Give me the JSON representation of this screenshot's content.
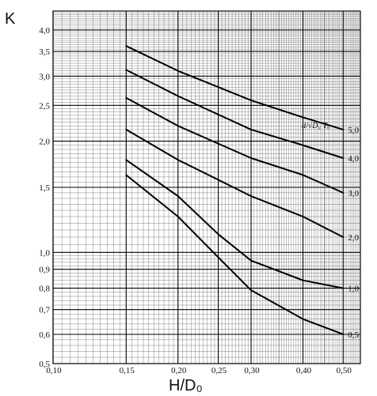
{
  "chart_data": {
    "type": "line",
    "title": "",
    "xlabel": "H/D₀",
    "ylabel": "K",
    "x_scale": "log",
    "y_scale": "log",
    "xlim": [
      0.1,
      0.55
    ],
    "ylim": [
      0.5,
      4.5
    ],
    "grid": true,
    "xticks": [
      0.1,
      0.15,
      0.2,
      0.25,
      0.3,
      0.4,
      0.5
    ],
    "xtick_labels": [
      "0,10",
      "0,15",
      "0,20",
      "0,25",
      "0,30",
      "0,40",
      "0,50"
    ],
    "yticks": [
      0.5,
      0.6,
      0.7,
      0.8,
      0.9,
      1.0,
      1.5,
      2.0,
      2.5,
      3.0,
      3.5,
      4.0
    ],
    "ytick_labels": [
      "0,5",
      "0,6",
      "0,7",
      "0,8",
      "0,9",
      "1,0",
      "1,5",
      "2,0",
      "2,5",
      "3,0",
      "3,5",
      "4,0"
    ],
    "legend_title": "d/√D₀ Tₒ",
    "legend_placement": "curve-ends-right",
    "series": [
      {
        "name": "5,0",
        "x": [
          0.15,
          0.2,
          0.3,
          0.4,
          0.5
        ],
        "y": [
          3.62,
          3.1,
          2.58,
          2.32,
          2.15
        ]
      },
      {
        "name": "4,0",
        "x": [
          0.15,
          0.2,
          0.3,
          0.4,
          0.5
        ],
        "y": [
          3.12,
          2.65,
          2.15,
          1.95,
          1.8
        ]
      },
      {
        "name": "3,0",
        "x": [
          0.15,
          0.2,
          0.3,
          0.4,
          0.5
        ],
        "y": [
          2.62,
          2.2,
          1.8,
          1.62,
          1.45
        ]
      },
      {
        "name": "2,0",
        "x": [
          0.15,
          0.2,
          0.3,
          0.4,
          0.5
        ],
        "y": [
          2.15,
          1.78,
          1.42,
          1.25,
          1.1
        ]
      },
      {
        "name": "1,0",
        "x": [
          0.15,
          0.2,
          0.25,
          0.3,
          0.4,
          0.5
        ],
        "y": [
          1.78,
          1.42,
          1.12,
          0.95,
          0.84,
          0.8
        ]
      },
      {
        "name": "0,5",
        "x": [
          0.15,
          0.2,
          0.25,
          0.3,
          0.4,
          0.5
        ],
        "y": [
          1.62,
          1.25,
          0.97,
          0.79,
          0.66,
          0.6
        ]
      }
    ]
  }
}
